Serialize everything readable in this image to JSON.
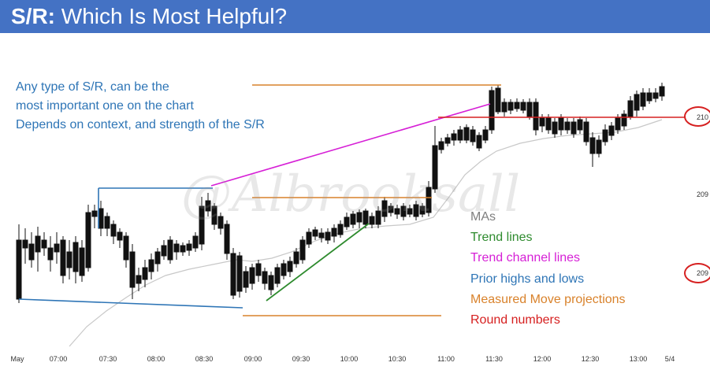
{
  "slide": {
    "title_bold": "S/R:",
    "title_rest": " Which Is Most Helpful?",
    "notes": [
      "Any type of S/R, can be the",
      "most important one on the chart",
      "Depends on context, and strength of the S/R"
    ],
    "watermark": "@Albrooksall"
  },
  "legend": [
    {
      "label": "MAs",
      "color": "#7f7f7f"
    },
    {
      "label": "Trend lines",
      "color": "#2e8b2e"
    },
    {
      "label": "Trend channel lines",
      "color": "#d61fd6"
    },
    {
      "label": "Prior highs and lows",
      "color": "#2e75b6"
    },
    {
      "label": "Measured Move projections",
      "color": "#d9822b"
    },
    {
      "label": "Round numbers",
      "color": "#d62020"
    }
  ],
  "price_labels": [
    "210",
    "209",
    "209"
  ],
  "chart_data": {
    "type": "candlestick",
    "x_ticks": [
      "May",
      "07:00",
      "07:30",
      "08:00",
      "08:30",
      "09:00",
      "09:30",
      "10:00",
      "10:30",
      "11:00",
      "11:30",
      "12:00",
      "12:30",
      "13:00",
      "5/4"
    ],
    "colors": {
      "moving_average": "#c8c8c8",
      "trend_line": "#2e8b2e",
      "trend_channel_line": "#d61fd6",
      "prior_highs_lows": "#2e75b6",
      "measured_move": "#d9822b",
      "round_number": "#d62020"
    }
  }
}
